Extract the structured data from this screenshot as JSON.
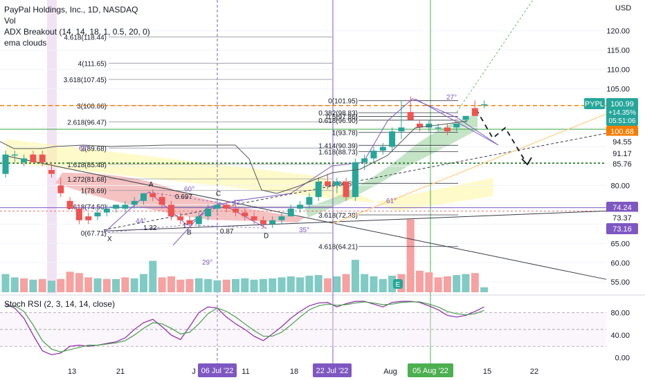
{
  "legend": {
    "title": "PayPal Holdings, Inc., 1D, NASDAQ",
    "vol": "Vol",
    "adx": "ADX Breakout (14, 14, 18, 1, 0.5, 20, 0)",
    "ema": "ema clouds"
  },
  "rsi_title": "Stoch RSI (2, 3, 14, 14, close)",
  "currency": "USD",
  "ticker_tag": "PYPL",
  "price_tag": {
    "price": "100.99",
    "change": "+14.35%",
    "countdown": "05:51:06"
  },
  "price_tags": [
    {
      "value": "100.68",
      "bg": "#f57c00",
      "fg": "#ffffff"
    },
    {
      "value": "94.55",
      "bg": "#ffffff",
      "fg": "#131722"
    },
    {
      "value": "91.17",
      "bg": "#ffffff",
      "fg": "#131722"
    },
    {
      "value": "85.76",
      "bg": "#ffffff",
      "fg": "#131722"
    },
    {
      "value": "74.24",
      "bg": "#7e57c2",
      "fg": "#ffffff"
    },
    {
      "value": "73.37",
      "bg": "#ffffff",
      "fg": "#131722"
    },
    {
      "value": "73.16",
      "bg": "#7e57c2",
      "fg": "#ffffff"
    }
  ],
  "date_tags": [
    {
      "label": "06 Jul '22",
      "bg": "#7e57c2"
    },
    {
      "label": "22 Jul '22",
      "bg": "#7e57c2"
    },
    {
      "label": "05 Aug '22",
      "bg": "#4caf50"
    }
  ],
  "colors": {
    "up": "#26a69a",
    "down": "#ef5350",
    "vol_up": "#80cbc4",
    "vol_down": "#f7a1a0",
    "fib": "#363a45",
    "purple": "#7e57c2",
    "green_line": "#4caf50",
    "orange": "#f57c00"
  },
  "chart_data": {
    "type": "candlestick",
    "price_axis": {
      "min": 52,
      "max": 128,
      "ticks": [
        55,
        60,
        65,
        70,
        75,
        80,
        85,
        90,
        95,
        100,
        105,
        110,
        115,
        120
      ]
    },
    "rsi_axis": {
      "min": -8,
      "max": 110,
      "ticks": [
        0,
        40,
        80
      ]
    },
    "x_ticks": [
      "13",
      "21",
      "J",
      "11",
      "18",
      "Aug",
      "15",
      "22"
    ],
    "candles": [
      {
        "o": 83,
        "h": 89,
        "l": 82,
        "c": 88
      },
      {
        "o": 88,
        "h": 89,
        "l": 86,
        "c": 88
      },
      {
        "o": 86,
        "h": 88,
        "l": 85,
        "c": 87
      },
      {
        "o": 88,
        "h": 89,
        "l": 86,
        "c": 86
      },
      {
        "o": 88,
        "h": 89,
        "l": 85,
        "c": 86
      },
      {
        "o": 84,
        "h": 86,
        "l": 82,
        "c": 83
      },
      {
        "o": 80,
        "h": 82,
        "l": 77,
        "c": 78
      },
      {
        "o": 76,
        "h": 77,
        "l": 74,
        "c": 74
      },
      {
        "o": 74,
        "h": 75,
        "l": 70,
        "c": 71
      },
      {
        "o": 72,
        "h": 73,
        "l": 70,
        "c": 71
      },
      {
        "o": 72,
        "h": 74,
        "l": 71,
        "c": 73
      },
      {
        "o": 73,
        "h": 75,
        "l": 72,
        "c": 74
      },
      {
        "o": 74,
        "h": 75,
        "l": 73,
        "c": 75
      },
      {
        "o": 74,
        "h": 76,
        "l": 73,
        "c": 75
      },
      {
        "o": 75,
        "h": 77,
        "l": 74,
        "c": 76
      },
      {
        "o": 76,
        "h": 78,
        "l": 75,
        "c": 78
      },
      {
        "o": 78,
        "h": 79,
        "l": 76,
        "c": 77
      },
      {
        "o": 77,
        "h": 78,
        "l": 74,
        "c": 75
      },
      {
        "o": 75,
        "h": 76,
        "l": 71,
        "c": 72
      },
      {
        "o": 72,
        "h": 73,
        "l": 70,
        "c": 71
      },
      {
        "o": 71,
        "h": 72,
        "l": 69,
        "c": 70
      },
      {
        "o": 70,
        "h": 73,
        "l": 69,
        "c": 72
      },
      {
        "o": 72,
        "h": 75,
        "l": 71,
        "c": 74
      },
      {
        "o": 74,
        "h": 76,
        "l": 73,
        "c": 75
      },
      {
        "o": 75,
        "h": 76,
        "l": 73,
        "c": 74
      },
      {
        "o": 74,
        "h": 75,
        "l": 72,
        "c": 73
      },
      {
        "o": 73,
        "h": 74,
        "l": 71,
        "c": 72
      },
      {
        "o": 72,
        "h": 73,
        "l": 70,
        "c": 71
      },
      {
        "o": 71,
        "h": 72,
        "l": 69,
        "c": 70
      },
      {
        "o": 70,
        "h": 72,
        "l": 69,
        "c": 71
      },
      {
        "o": 71,
        "h": 73,
        "l": 70,
        "c": 72
      },
      {
        "o": 72,
        "h": 75,
        "l": 72,
        "c": 74
      },
      {
        "o": 74,
        "h": 76,
        "l": 73,
        "c": 75
      },
      {
        "o": 75,
        "h": 78,
        "l": 74,
        "c": 77
      },
      {
        "o": 77,
        "h": 82,
        "l": 76,
        "c": 81
      },
      {
        "o": 81,
        "h": 83,
        "l": 79,
        "c": 80
      },
      {
        "o": 80,
        "h": 82,
        "l": 78,
        "c": 81
      },
      {
        "o": 81,
        "h": 82,
        "l": 76,
        "c": 77
      },
      {
        "o": 77,
        "h": 87,
        "l": 76,
        "c": 86
      },
      {
        "o": 86,
        "h": 88,
        "l": 84,
        "c": 87
      },
      {
        "o": 87,
        "h": 90,
        "l": 86,
        "c": 89
      },
      {
        "o": 89,
        "h": 91,
        "l": 88,
        "c": 90
      },
      {
        "o": 90,
        "h": 95,
        "l": 89,
        "c": 94
      },
      {
        "o": 94,
        "h": 102,
        "l": 92,
        "c": 95
      },
      {
        "o": 99,
        "h": 103,
        "l": 97,
        "c": 97
      },
      {
        "o": 96,
        "h": 97,
        "l": 94,
        "c": 95
      },
      {
        "o": 95,
        "h": 97,
        "l": 94,
        "c": 96
      },
      {
        "o": 95,
        "h": 96,
        "l": 94,
        "c": 95
      },
      {
        "o": 95,
        "h": 96,
        "l": 93,
        "c": 94
      },
      {
        "o": 95,
        "h": 96,
        "l": 94,
        "c": 96
      },
      {
        "o": 97,
        "h": 98,
        "l": 96,
        "c": 98
      },
      {
        "o": 100,
        "h": 102,
        "l": 98,
        "c": 98
      },
      {
        "o": 101,
        "h": 102,
        "l": 100,
        "c": 101
      }
    ],
    "volume": [
      {
        "v": 55,
        "up": true
      },
      {
        "v": 45,
        "up": true
      },
      {
        "v": 42,
        "up": false
      },
      {
        "v": 38,
        "up": true
      },
      {
        "v": 40,
        "up": false
      },
      {
        "v": 35,
        "up": true
      },
      {
        "v": 40,
        "up": false
      },
      {
        "v": 62,
        "up": false
      },
      {
        "v": 58,
        "up": false
      },
      {
        "v": 45,
        "up": false
      },
      {
        "v": 42,
        "up": true
      },
      {
        "v": 40,
        "up": false
      },
      {
        "v": 40,
        "up": true
      },
      {
        "v": 45,
        "up": false
      },
      {
        "v": 42,
        "up": true
      },
      {
        "v": 55,
        "up": true
      },
      {
        "v": 95,
        "up": true
      },
      {
        "v": 45,
        "up": false
      },
      {
        "v": 48,
        "up": false
      },
      {
        "v": 38,
        "up": false
      },
      {
        "v": 40,
        "up": false
      },
      {
        "v": 42,
        "up": true
      },
      {
        "v": 40,
        "up": true
      },
      {
        "v": 36,
        "up": true
      },
      {
        "v": 38,
        "up": false
      },
      {
        "v": 40,
        "up": true
      },
      {
        "v": 42,
        "up": true
      },
      {
        "v": 38,
        "up": true
      },
      {
        "v": 40,
        "up": true
      },
      {
        "v": 42,
        "up": true
      },
      {
        "v": 45,
        "up": true
      },
      {
        "v": 48,
        "up": true
      },
      {
        "v": 45,
        "up": true
      },
      {
        "v": 50,
        "up": true
      },
      {
        "v": 52,
        "up": true
      },
      {
        "v": 42,
        "up": false
      },
      {
        "v": 48,
        "up": true
      },
      {
        "v": 55,
        "up": false
      },
      {
        "v": 98,
        "up": true
      },
      {
        "v": 55,
        "up": true
      },
      {
        "v": 48,
        "up": true
      },
      {
        "v": 40,
        "up": true
      },
      {
        "v": 50,
        "up": true
      },
      {
        "v": 55,
        "up": false
      },
      {
        "v": 220,
        "up": false
      },
      {
        "v": 65,
        "up": false
      },
      {
        "v": 60,
        "up": false
      },
      {
        "v": 45,
        "up": false
      },
      {
        "v": 48,
        "up": false
      },
      {
        "v": 52,
        "up": true
      },
      {
        "v": 55,
        "up": true
      },
      {
        "v": 58,
        "up": false
      },
      {
        "v": 15,
        "up": true
      }
    ],
    "stoch_k": [
      95,
      88,
      70,
      40,
      12,
      5,
      8,
      20,
      22,
      20,
      22,
      25,
      28,
      35,
      50,
      62,
      68,
      55,
      40,
      32,
      55,
      80,
      90,
      88,
      72,
      60,
      50,
      38,
      30,
      42,
      55,
      70,
      82,
      92,
      97,
      98,
      90,
      96,
      100,
      100,
      95,
      90,
      98,
      100,
      100,
      98,
      92,
      85,
      75,
      72,
      75,
      82,
      90
    ],
    "stoch_d": [
      90,
      92,
      82,
      58,
      30,
      15,
      10,
      14,
      18,
      22,
      22,
      24,
      26,
      30,
      40,
      52,
      62,
      60,
      52,
      42,
      45,
      60,
      78,
      88,
      82,
      72,
      60,
      48,
      38,
      38,
      45,
      58,
      72,
      85,
      92,
      95,
      93,
      94,
      97,
      99,
      97,
      94,
      95,
      98,
      99,
      99,
      95,
      90,
      82,
      78,
      76,
      78,
      84
    ],
    "fib_left": [
      {
        "label": "4.618(118.44)",
        "value": 118.44
      },
      {
        "label": "4(111.65)",
        "value": 111.65
      },
      {
        "label": "3.618(107.45)",
        "value": 107.45
      },
      {
        "label": "3(100.66)",
        "value": 100.66
      },
      {
        "label": "2.618(96.47)",
        "value": 96.47
      },
      {
        "label": "2(89.68)",
        "value": 89.68
      },
      {
        "label": "1.618(85.48)",
        "value": 85.48
      },
      {
        "label": "1.272(81.68)",
        "value": 81.68
      },
      {
        "label": "1(78.69)",
        "value": 78.69
      },
      {
        "label": "0.618(74.50)",
        "value": 74.5
      },
      {
        "label": "0(67.71)",
        "value": 67.71
      }
    ],
    "fib_right": [
      {
        "label": "0(101.95)",
        "value": 101.95
      },
      {
        "label": "0.382(98.83)",
        "value": 98.83
      },
      {
        "label": "0.5(97.86)",
        "value": 97.86
      },
      {
        "label": "0.618(96.90)",
        "value": 96.9
      },
      {
        "label": "1(93.78)",
        "value": 93.78
      },
      {
        "label": "1.414(90.39)",
        "value": 90.39
      },
      {
        "label": "1.618(88.73)",
        "value": 88.73
      },
      {
        "label": "2.618(80.56)",
        "value": 80.56
      },
      {
        "label": "3.618(72.38)",
        "value": 72.38
      },
      {
        "label": "4.618(64.21)",
        "value": 64.21
      }
    ],
    "pattern_labels": [
      "X",
      "A",
      "B",
      "C",
      "D"
    ],
    "pattern_ratios": [
      "0.697",
      "1.32",
      "1.2",
      "0.87"
    ],
    "angles": [
      "62°",
      "44°",
      "60°",
      "42°",
      "29°",
      "35°",
      "61°",
      "27°"
    ]
  }
}
